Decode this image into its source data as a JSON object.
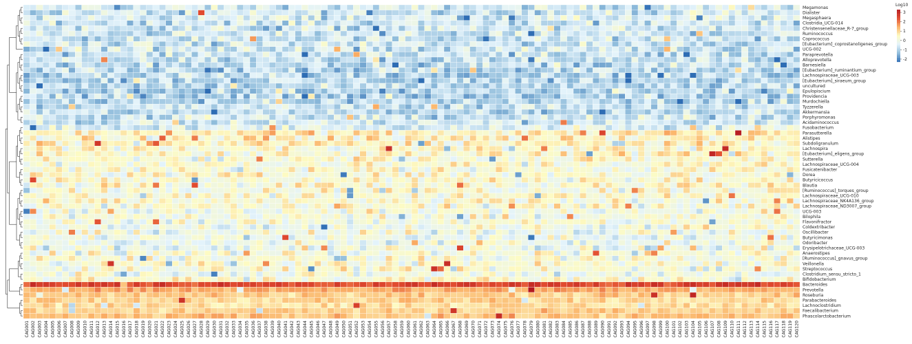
{
  "chart_data": {
    "type": "heatmap",
    "title": "",
    "xlabel": "",
    "ylabel": "",
    "rows": [
      "Megamonas",
      "Dialister",
      "Megasphaera",
      "Clostridia_UCG-014",
      "Christensenellaceae_R-7_group",
      "Ruminococcus",
      "Coprococcus",
      "[Eubacterium]_coprostanoligenes_group",
      "UCG-002",
      "Paraprevotella",
      "Alloprevotella",
      "Barnesiella",
      "[Eubacterium]_ruminantium_group",
      "Lachnospiraceae_UCG-003",
      "[Eubacterium]_siraeum_group",
      "uncultured",
      "Epulopiscium",
      "Providencia",
      "Murdochiella",
      "Tyzzerella",
      "Akkermansia",
      "Porphyromonas",
      "Acidaminococcus",
      "Fusobacterium",
      "Parasutterella",
      "Alistipes",
      "Subdoligranulum",
      "Lachnospira",
      "[Eubacterium]_eligens_group",
      "Sutterella",
      "Lachnospiraceae_UCG-004",
      "Fusicatenibacter",
      "Dorea",
      "Butyricicoccus",
      "Blautia",
      "[Ruminococcus]_torques_group",
      "Lachnospiraceae_UCG-010",
      "Lachnospiraceae_NK4A136_group",
      "Lachnospiraceae_ND3007_group",
      "UCG-003",
      "Bilophila",
      "Flavonifractor",
      "Coldextribacter",
      "Oscillibacter",
      "Butyricimonas",
      "Odoribacter",
      "Erysipelotrichaceae_UCG-003",
      "Anaerostipes",
      "[Ruminococcus]_gnavus_group",
      "Veillonella",
      "Streptococcus",
      "Clostridium_sensu_stricto_1",
      "Bifidobacterium",
      "Bacteroides",
      "Prevotella",
      "Roseburia",
      "Parabacteroides",
      "Lachnoclostridium",
      "Faecalibacterium",
      "Phascolarctobacterium"
    ],
    "columns": [
      "CAG001",
      "CAG002",
      "CAG003",
      "CAG004",
      "CAG005",
      "CAG006",
      "CAG007",
      "CAG008",
      "CAG009",
      "CAG010",
      "CAG011",
      "CAG012",
      "CAG013",
      "CAG014",
      "CAG015",
      "CAG016",
      "CAG017",
      "CAG018",
      "CAG019",
      "CAG020",
      "CAG021",
      "CAG022",
      "CAG023",
      "CAG024",
      "CAG025",
      "CAG026",
      "CAG027",
      "CAG028",
      "CAG029",
      "CAG030",
      "CAG031",
      "CAG032",
      "CAG033",
      "CAG034",
      "CAG035",
      "CAG036",
      "CAG037",
      "CAG038",
      "CAG039",
      "CAG040",
      "CAG041",
      "CAG042",
      "CAG043",
      "CAG044",
      "CAG045",
      "CAG046",
      "CAG047",
      "CAG048",
      "CAG049",
      "CAG050",
      "CAG051",
      "CAG052",
      "CAG053",
      "CAG054",
      "CAG055",
      "CAG056",
      "CAG057",
      "CAG058",
      "CAG059",
      "CAG060",
      "CAG061",
      "CAG062",
      "CAG063",
      "CAG064",
      "CAG065",
      "CAG066",
      "CAG067",
      "CAG068",
      "CAG069",
      "CAG070",
      "CAG071",
      "CAG072",
      "CAG073",
      "CAG074",
      "CAG075",
      "CAG076",
      "CAG077",
      "CAG078",
      "CAG079",
      "CAG080",
      "CAG081",
      "CAG082",
      "CAG083",
      "CAG084",
      "CAG085",
      "CAG086",
      "CAG087",
      "CAG088",
      "CAG089",
      "CAG090",
      "CAG091",
      "CAG092",
      "CAG093",
      "CAG094",
      "CAG095",
      "CAG096",
      "CAG097",
      "CAG098",
      "CAG099",
      "CAG100",
      "CAG101",
      "CAG102",
      "CAG103",
      "CAG104",
      "CAG105",
      "CAG106",
      "CAG107",
      "CAG108",
      "CAG109",
      "CAG110",
      "CAG111",
      "CAG112",
      "CAG113",
      "CAG114",
      "CAG115",
      "CAG116",
      "CAG117",
      "CAG118",
      "CAG119",
      "CAG120"
    ],
    "row_means": [
      -0.6,
      -0.6,
      -0.5,
      -0.6,
      -0.6,
      -0.7,
      -0.7,
      -0.7,
      -0.6,
      -0.7,
      -0.8,
      -0.8,
      -0.9,
      -0.9,
      -0.9,
      -1.0,
      -1.0,
      -1.0,
      -0.9,
      -0.7,
      -0.8,
      -0.7,
      -0.6,
      -0.4,
      0.6,
      0.5,
      0.5,
      0.4,
      0.4,
      0.3,
      0.3,
      0.3,
      0.3,
      0.3,
      0.3,
      0.3,
      0.3,
      0.2,
      0.2,
      0.1,
      0.1,
      0.1,
      0.0,
      0.0,
      -0.1,
      -0.1,
      -0.1,
      0.1,
      0.2,
      0.3,
      0.2,
      0.0,
      0.3,
      2.5,
      1.5,
      1.1,
      1.0,
      0.9,
      1.0,
      1.2
    ],
    "colorbar": {
      "title": "Log10",
      "ticks": [
        3,
        2,
        1,
        0,
        -1,
        -2
      ],
      "range": [
        -2.3,
        3.3
      ],
      "colors": [
        "#2e6db4",
        "#8fbcdb",
        "#e3f3fb",
        "#fdfbc3",
        "#fbb267",
        "#e14b2f",
        "#b3191f"
      ]
    },
    "legend_position": "top-right",
    "row_dendrogram": true,
    "column_dendrogram": false
  }
}
